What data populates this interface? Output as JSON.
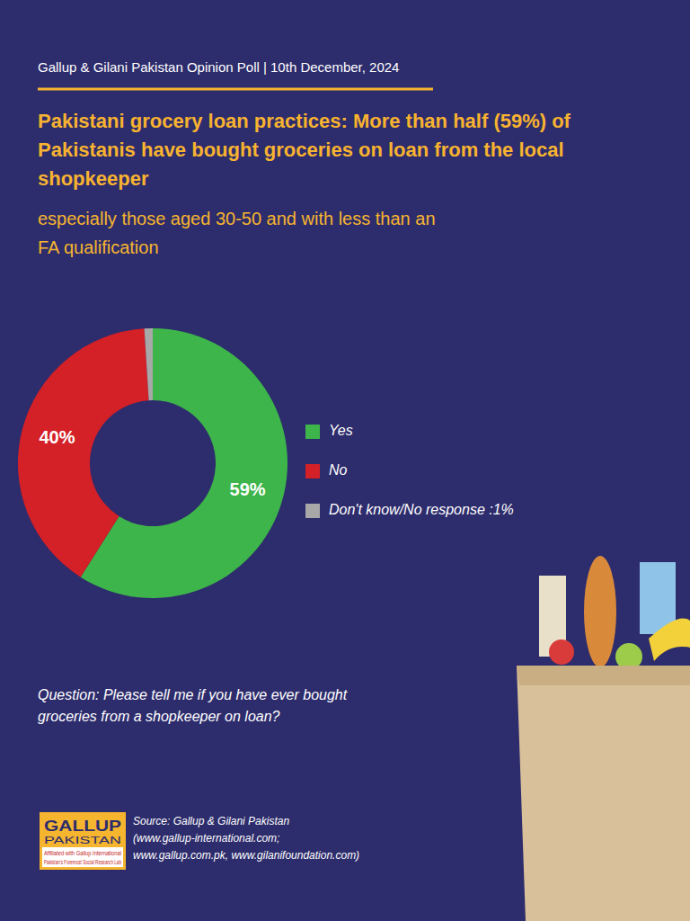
{
  "chart_data": {
    "type": "pie",
    "title": "Pakistani grocery loan practices: More than half (59%) of Pakistanis have bought groceries on loan from the local shopkeeper",
    "subtitle": "especially those aged 30-50 and with less than an FA qualification",
    "categories": [
      "Yes",
      "No",
      "Don't know/No response :1%"
    ],
    "values": [
      59,
      40,
      1
    ],
    "value_labels": [
      "59%",
      "40%",
      null
    ],
    "colors": [
      "#3db54a",
      "#d42027",
      "#a8a8a8"
    ],
    "data_labels": true,
    "legend": "right"
  },
  "page": {
    "header": "Gallup & Gilani Pakistan Opinion Poll | 10th December, 2024",
    "question": "Question: Please tell me if you have ever bought groceries from a shopkeeper on loan?",
    "source": [
      "Source: Gallup & Gilani Pakistan",
      "(www.gallup-international.com;",
      "www.gallup.com.pk, www.gilanifoundation.com)"
    ],
    "logo": [
      "GALLUP",
      "PAKISTAN",
      "Affiliated with Gallup International",
      "Pakistan's Foremost Social Research Lab"
    ]
  }
}
